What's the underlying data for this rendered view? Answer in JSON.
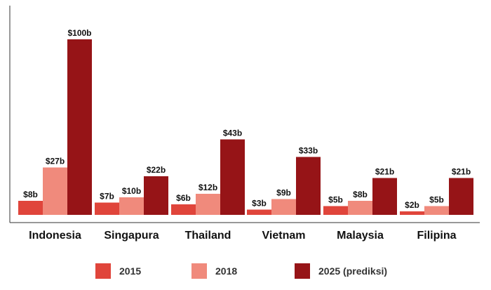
{
  "chart_data": {
    "type": "bar",
    "categories": [
      "Indonesia",
      "Singapura",
      "Thailand",
      "Vietnam",
      "Malaysia",
      "Filipina"
    ],
    "series": [
      {
        "name": "2015",
        "color": "#e0453b",
        "values": [
          8,
          7,
          6,
          3,
          5,
          2
        ],
        "labels": [
          "$8b",
          "$7b",
          "$6b",
          "$3b",
          "$5b",
          "$2b"
        ]
      },
      {
        "name": "2018",
        "color": "#f08a7c",
        "values": [
          27,
          10,
          12,
          9,
          8,
          5
        ],
        "labels": [
          "$27b",
          "$10b",
          "$12b",
          "$9b",
          "$8b",
          "$5b"
        ]
      },
      {
        "name": "2025 (prediksi)",
        "color": "#961417",
        "values": [
          100,
          22,
          43,
          33,
          21,
          21
        ],
        "labels": [
          "$100b",
          "$22b",
          "$43b",
          "$33b",
          "$21b",
          "$21b"
        ]
      }
    ],
    "title": "",
    "xlabel": "",
    "ylabel": "",
    "ylim": [
      0,
      100
    ],
    "grid": false,
    "legend": "bottom"
  }
}
